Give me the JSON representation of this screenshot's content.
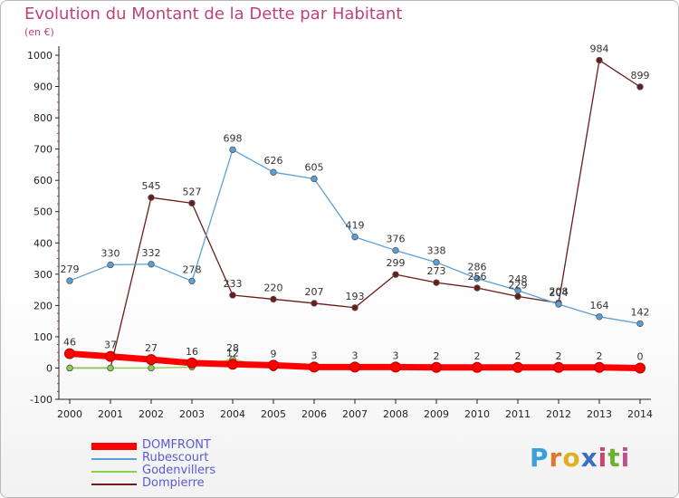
{
  "title": "Evolution du Montant de la Dette par Habitant",
  "subtitle": "(en €)",
  "logo": {
    "text": "Proxiti",
    "letters": [
      "P",
      "r",
      "o",
      "x",
      "i",
      "t",
      "i"
    ],
    "colors": [
      "#3aa0d8",
      "#e07a2a",
      "#e0b020",
      "#3a70c0",
      "#d04070",
      "#70b030",
      "#c05090"
    ]
  },
  "chart_data": {
    "type": "line",
    "x": [
      2000,
      2001,
      2002,
      2003,
      2004,
      2005,
      2006,
      2007,
      2008,
      2009,
      2010,
      2011,
      2012,
      2013,
      2014
    ],
    "ylim": [
      -100,
      1000
    ],
    "yticks": [
      -100,
      0,
      100,
      200,
      300,
      400,
      500,
      600,
      700,
      800,
      900,
      1000
    ],
    "grid": false,
    "legend_position": "bottom-left",
    "series": [
      {
        "name": "DOMFRONT",
        "color": "#ff0000",
        "values": [
          46,
          37,
          27,
          16,
          12,
          9,
          3,
          3,
          3,
          2,
          2,
          2,
          2,
          2,
          0
        ],
        "labels": [
          "46",
          "37",
          "27",
          "16",
          "12",
          "9",
          "3",
          "3",
          "3",
          "2",
          "2",
          "2",
          "2",
          "2",
          "0"
        ]
      },
      {
        "name": "Rubescourt",
        "color": "#5aa0d8",
        "values": [
          279,
          330,
          332,
          278,
          698,
          626,
          605,
          419,
          376,
          338,
          286,
          248,
          204,
          164,
          142
        ],
        "labels": [
          "279",
          "330",
          "332",
          "278",
          "698",
          "626",
          "605",
          "419",
          "376",
          "338",
          "286",
          "248",
          "204",
          "164",
          "142"
        ]
      },
      {
        "name": "Godenvillers",
        "color": "#8bd04a",
        "values": [
          0,
          0,
          0,
          3,
          28,
          0,
          0,
          0,
          0,
          0,
          0,
          0,
          0,
          0,
          0
        ],
        "labels": [
          "",
          "",
          "",
          "",
          "28",
          "",
          "",
          "",
          "",
          "",
          "",
          "",
          "",
          "",
          ""
        ]
      },
      {
        "name": "Dompierre",
        "color": "#6b1b1b",
        "values": [
          0,
          0,
          545,
          527,
          233,
          220,
          207,
          193,
          299,
          273,
          256,
          229,
          208,
          984,
          899
        ],
        "labels": [
          "",
          "",
          "545",
          "527",
          "233",
          "220",
          "207",
          "193",
          "299",
          "273",
          "256",
          "229",
          "208",
          "984",
          "899"
        ]
      }
    ]
  }
}
